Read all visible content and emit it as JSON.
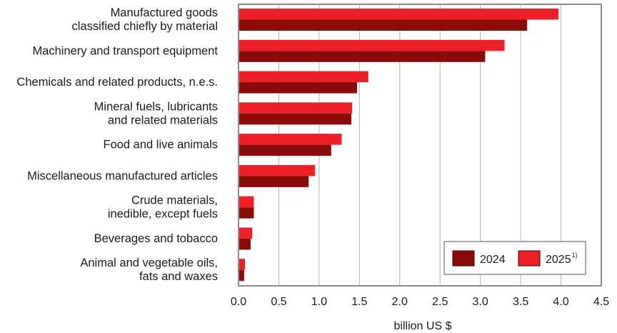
{
  "chart_data": {
    "type": "bar",
    "orientation": "horizontal",
    "categories": [
      [
        "Manufactured goods",
        "classified chiefly by material"
      ],
      [
        "Machinery and transport equipment"
      ],
      [
        "Chemicals and related products, n.e.s."
      ],
      [
        "Mineral fuels, lubricants",
        "and related materials"
      ],
      [
        "Food and live animals"
      ],
      [
        "Miscellaneous manufactured articles"
      ],
      [
        "Crude materials,",
        "inedible, except fuels"
      ],
      [
        "Beverages and tobacco"
      ],
      [
        "Animal and vegetable oils,",
        "fats and waxes"
      ]
    ],
    "series": [
      {
        "name": "2025",
        "name_sup": "1)",
        "color": "#ee2027",
        "values": [
          3.97,
          3.3,
          1.61,
          1.41,
          1.28,
          0.95,
          0.19,
          0.17,
          0.08
        ]
      },
      {
        "name": "2024",
        "name_sup": "",
        "color": "#8b0a0a",
        "values": [
          3.58,
          3.06,
          1.47,
          1.4,
          1.15,
          0.87,
          0.19,
          0.15,
          0.07
        ]
      }
    ],
    "xlabel": "billion US $",
    "xlim": [
      0,
      4.5
    ],
    "xticks": [
      0,
      0.5,
      1,
      1.5,
      2,
      2.5,
      3,
      3.5,
      4,
      4.5
    ],
    "xtick_labels": [
      "0.0",
      "0.5",
      "1.0",
      "1.5",
      "2.0",
      "2.5",
      "3.0",
      "3.5",
      "4.0",
      "4.5"
    ],
    "grid": true,
    "legend": {
      "position": "bottom-right",
      "entries": [
        {
          "label": "2024",
          "sup": "",
          "color": "#8b0a0a"
        },
        {
          "label": "2025",
          "sup": "1)",
          "color": "#ee2027"
        }
      ]
    }
  }
}
